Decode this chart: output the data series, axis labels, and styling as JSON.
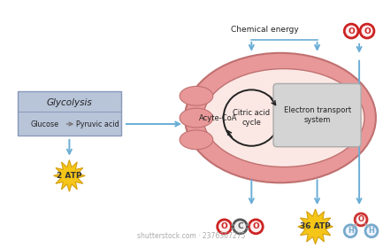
{
  "bg_color": "#ffffff",
  "mito_outer_color": "#e89898",
  "mito_inner_light": "#fbe8e4",
  "mito_crista_color": "#e89898",
  "glycolysis_box_color": "#b8c4d8",
  "glycolysis_box_edge": "#8899bb",
  "electron_box_color": "#d4d4d4",
  "electron_box_edge": "#aaaaaa",
  "arrow_color": "#6baed6",
  "atp_burst_color": "#f5c518",
  "atp_burst_edge": "#d4a010",
  "text_color": "#222222",
  "o2_red": "#cc2222",
  "co2_carbon_color": "#555555",
  "h2o_oxygen_color": "#cc3333",
  "h2o_hydrogen_color": "#77aacc",
  "watermark": "shutterstock.com · 2376367275",
  "chem_energy_label": "Chemical energy",
  "glycolysis_title": "Glycolysis",
  "glucose_label": "Glucose",
  "pyruvic_label": "Pyruvic acid",
  "acetyl_label": "Acyte-CoA",
  "citric_label": "Citric acid\ncycle",
  "electron_label": "Electron transport\nsystem",
  "atp2_label": "2 ATP",
  "atp36_label": "36 ATP"
}
